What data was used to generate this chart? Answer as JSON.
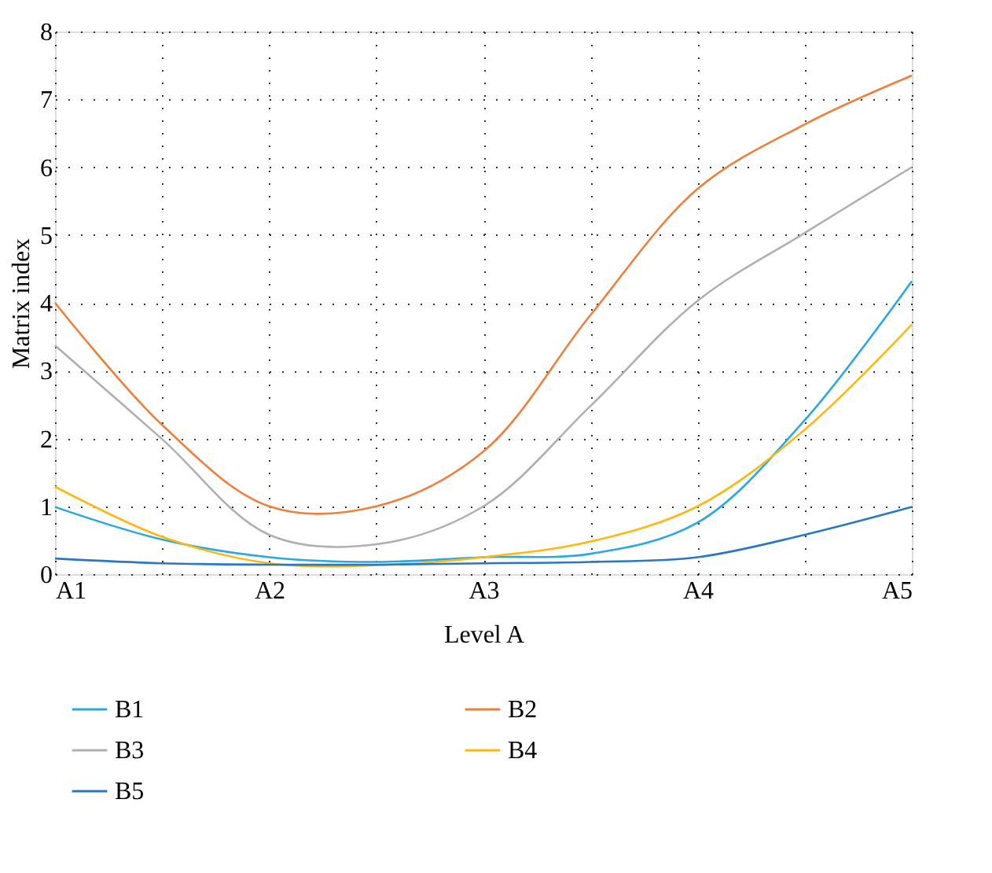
{
  "chart_data": {
    "type": "line",
    "xlabel": "Level A",
    "ylabel": "Matrix index",
    "categories": [
      "A1",
      null,
      "A2",
      null,
      "A3",
      null,
      "A4",
      null,
      "A5"
    ],
    "ylim": [
      0,
      8
    ],
    "yticks": [
      0,
      1,
      2,
      3,
      4,
      5,
      6,
      7,
      8
    ],
    "grid": true,
    "legend": "bottom",
    "marker": "none",
    "line_style": "solid",
    "series": [
      {
        "name": "B1",
        "color": "#2aa8e0",
        "values": [
          0.99,
          0.51,
          0.25,
          0.18,
          0.25,
          0.3,
          0.76,
          2.27,
          4.32
        ]
      },
      {
        "name": "B2",
        "color": "#f07f3c",
        "values": [
          4.0,
          2.2,
          1.0,
          1.0,
          1.81,
          3.82,
          5.68,
          6.63,
          7.35
        ]
      },
      {
        "name": "B3",
        "color": "#b0b0b0",
        "values": [
          3.37,
          1.99,
          0.58,
          0.44,
          1.0,
          2.48,
          4.03,
          5.03,
          6.0
        ]
      },
      {
        "name": "B4",
        "color": "#fdb813",
        "values": [
          1.29,
          0.55,
          0.16,
          0.13,
          0.25,
          0.48,
          1.0,
          2.13,
          3.68
        ]
      },
      {
        "name": "B5",
        "color": "#2b78c2",
        "values": [
          0.23,
          0.16,
          0.14,
          0.14,
          0.16,
          0.18,
          0.25,
          0.58,
          0.99
        ]
      }
    ]
  }
}
